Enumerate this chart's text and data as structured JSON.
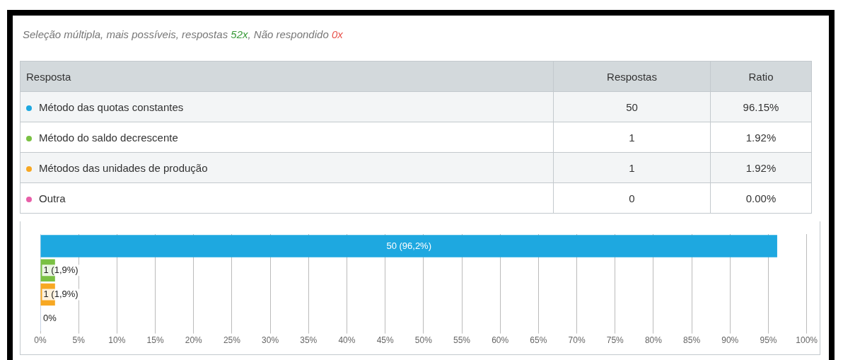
{
  "chart_data": {
    "type": "bar",
    "orientation": "horizontal",
    "subtitle": "Seleção múltipla, mais possíveis, respostas 52x, Não respondido 0x",
    "categories": [
      null,
      null,
      null,
      null
    ],
    "values": [
      96.15,
      1.92,
      1.92,
      0
    ],
    "colors": [
      "#1ea8e0",
      "#7ac143",
      "#f7a823",
      "#e85fa8"
    ],
    "value_labels": [
      "50 (96,2%)",
      "1 (1,9%)",
      "1 (1,9%)",
      "0%"
    ],
    "annotations": [
      "Resposta",
      "Respostas",
      "Ratio",
      "Método das quotas constantes",
      "50",
      "96.15%",
      "Método do saldo decrescente",
      "1",
      "1.92%",
      "Métodos das unidades de produção",
      "1",
      "1.92%",
      "Outra",
      "0",
      "0.00%"
    ],
    "xlim": [
      0,
      100
    ],
    "xticks": [
      {
        "value": 0,
        "label": "0%"
      },
      {
        "value": 5,
        "label": "5%"
      },
      {
        "value": 10,
        "label": "10%"
      },
      {
        "value": 15,
        "label": "15%"
      },
      {
        "value": 20,
        "label": "20%"
      },
      {
        "value": 25,
        "label": "25%"
      },
      {
        "value": 30,
        "label": "30%"
      },
      {
        "value": 35,
        "label": "35%"
      },
      {
        "value": 40,
        "label": "40%"
      },
      {
        "value": 45,
        "label": "45%"
      },
      {
        "value": 50,
        "label": "50%"
      },
      {
        "value": 55,
        "label": "55%"
      },
      {
        "value": 60,
        "label": "60%"
      },
      {
        "value": 65,
        "label": "65%"
      },
      {
        "value": 70,
        "label": "70%"
      },
      {
        "value": 75,
        "label": "75%"
      },
      {
        "value": 80,
        "label": "80%"
      },
      {
        "value": 85,
        "label": "85%"
      },
      {
        "value": 90,
        "label": "90%"
      },
      {
        "value": 95,
        "label": "95%"
      },
      {
        "value": 100,
        "label": "100%"
      }
    ],
    "grid": "x",
    "tick_labels": "x",
    "legend": false
  }
}
